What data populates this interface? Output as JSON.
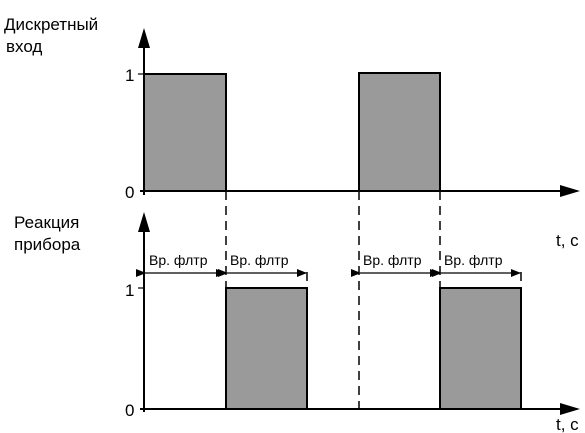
{
  "top": {
    "ylabel_line1": "Дискретный",
    "ylabel_line2": "вход",
    "tick_one": "1",
    "tick_zero": "0",
    "xlabel": "t, с"
  },
  "bottom": {
    "ylabel_line1": "Реакция",
    "ylabel_line2": "прибора",
    "tick_one": "1",
    "tick_zero": "0",
    "xlabel": "t, с"
  },
  "filter_label": "Вр. флтр"
}
